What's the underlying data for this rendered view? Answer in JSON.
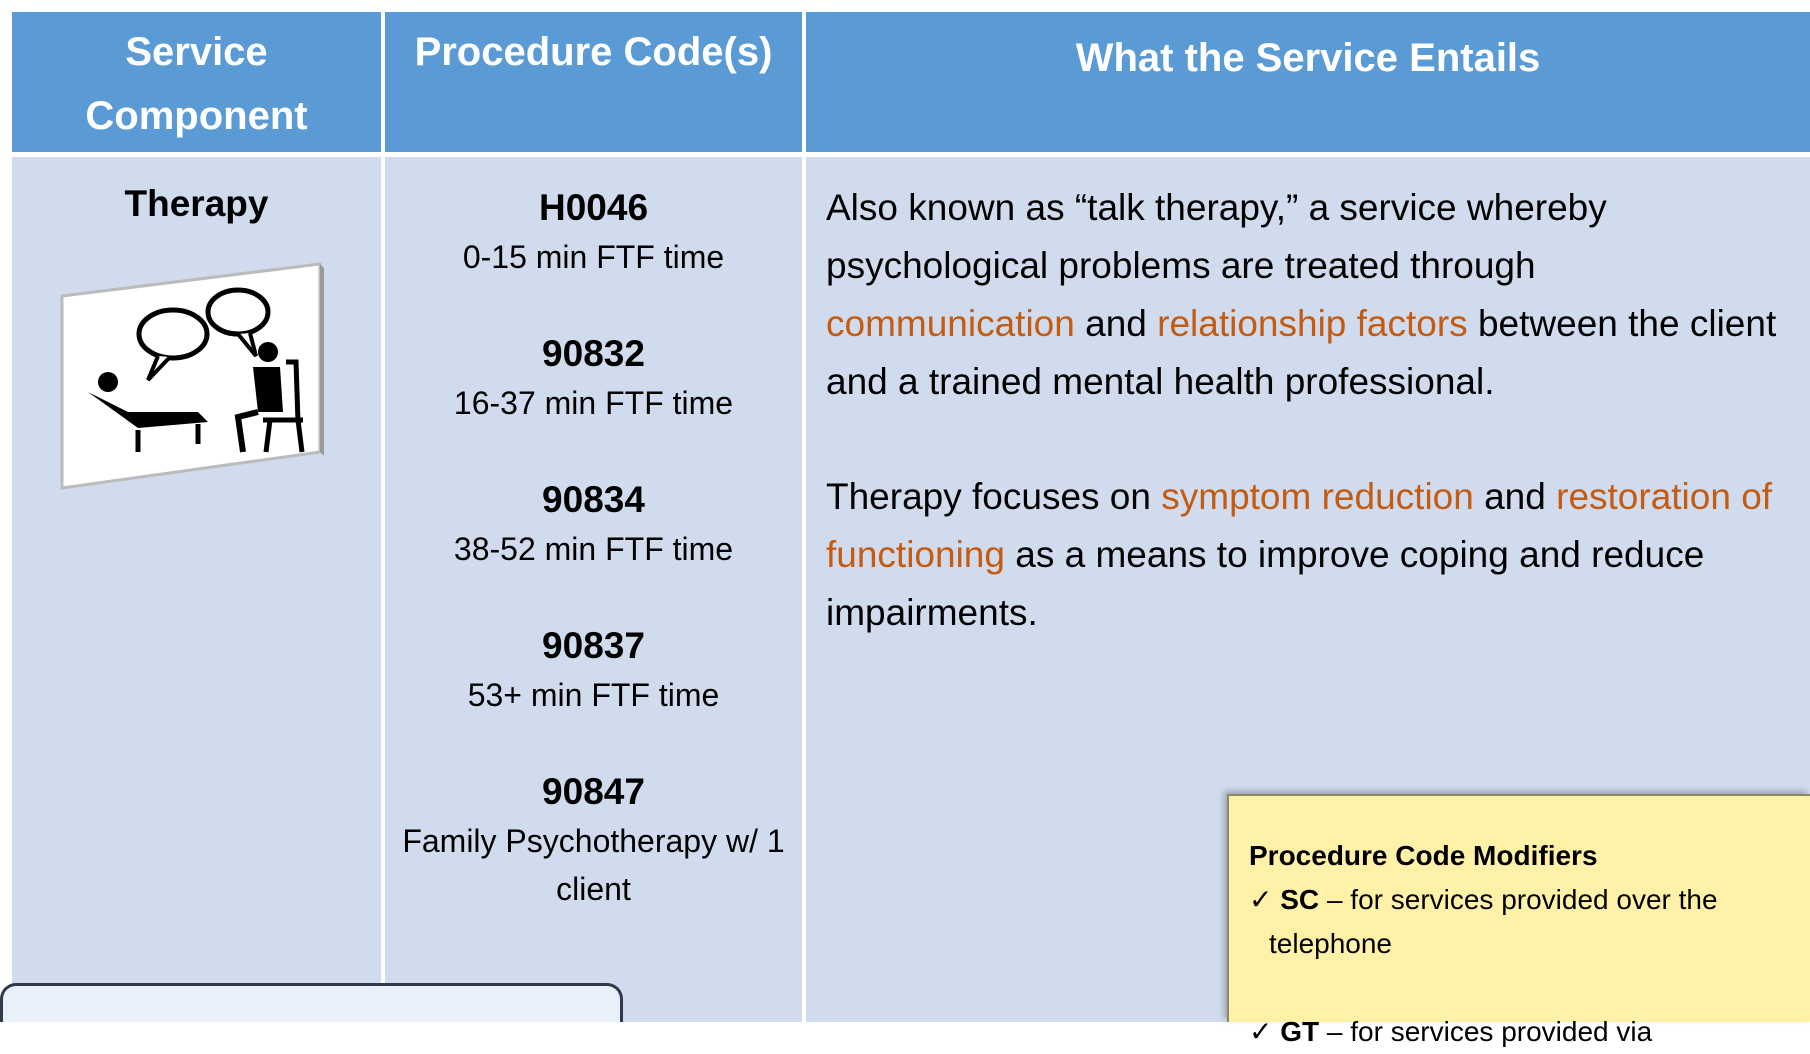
{
  "table": {
    "headers": [
      "Service Component",
      "Procedure Code(s)",
      "What the Service Entails"
    ],
    "component": "Therapy",
    "codes": [
      {
        "code": "H0046",
        "desc": "0-15 min FTF time"
      },
      {
        "code": "90832",
        "desc": "16-37 min FTF time"
      },
      {
        "code": "90834",
        "desc": "38-52 min FTF time"
      },
      {
        "code": "90837",
        "desc": "53+ min FTF time"
      },
      {
        "code": "90847",
        "desc": "Family Psychotherapy w/ 1 client"
      }
    ],
    "description": [
      [
        {
          "text": "Also known as “talk therapy,” a service whereby psychological problems are treated through ",
          "accent": false
        },
        {
          "text": "communication",
          "accent": true
        },
        {
          "text": " and ",
          "accent": false
        },
        {
          "text": "relationship factors",
          "accent": true
        },
        {
          "text": " between the client and a trained mental health professional.",
          "accent": false
        }
      ],
      [
        {
          "text": "Therapy focuses on ",
          "accent": false
        },
        {
          "text": "symptom reduction",
          "accent": true
        },
        {
          "text": " and ",
          "accent": false
        },
        {
          "text": "restoration of functioning",
          "accent": true
        },
        {
          "text": " as a means to improve coping and reduce impairments.",
          "accent": false
        }
      ]
    ]
  },
  "modifiers": {
    "title": "Procedure Code Modifiers",
    "items": [
      {
        "code": "SC",
        "text": "– for services provided over the telephone"
      },
      {
        "code": "GT",
        "text": "– for services provided via"
      }
    ]
  }
}
